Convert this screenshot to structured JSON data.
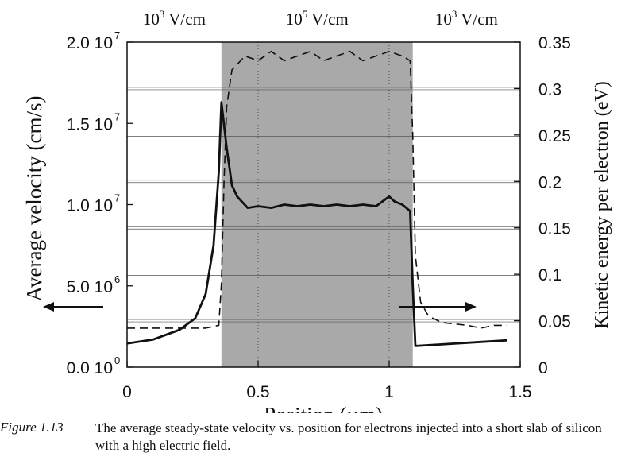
{
  "chart_data": {
    "type": "line",
    "xlabel": "Position (µm)",
    "ylabel_left": "Average velocity (cm/s)",
    "ylabel_right": "Kinetic energy per electron (eV)",
    "xlim": [
      0,
      1.5
    ],
    "ylim_left": [
      0,
      20000000
    ],
    "ylim_right": [
      0,
      0.35
    ],
    "x_ticks": [
      0,
      0.5,
      1,
      1.5
    ],
    "x_tick_labels": [
      "0",
      "0.5",
      "1",
      "1.5"
    ],
    "y_left_ticks": [
      0,
      5000000,
      10000000,
      15000000,
      20000000
    ],
    "y_left_tick_labels": [
      {
        "mant": "0.0 10",
        "exp": "0"
      },
      {
        "mant": "5.0 10",
        "exp": "6"
      },
      {
        "mant": "1.0 10",
        "exp": "7"
      },
      {
        "mant": "1.5 10",
        "exp": "7"
      },
      {
        "mant": "2.0 10",
        "exp": "7"
      }
    ],
    "y_right_ticks": [
      0,
      0.05,
      0.1,
      0.15,
      0.2,
      0.25,
      0.3,
      0.35
    ],
    "y_right_tick_labels": [
      "0",
      "0.05",
      "0.1",
      "0.15",
      "0.2",
      "0.25",
      "0.3",
      "0.35"
    ],
    "grid": "horizontal",
    "shaded_region": {
      "x_start": 0.36,
      "x_end": 1.09
    },
    "region_labels": [
      {
        "base": "10",
        "exp": "3",
        "unit": " V/cm"
      },
      {
        "base": "10",
        "exp": "5",
        "unit": " V/cm"
      },
      {
        "base": "10",
        "exp": "3",
        "unit": " V/cm"
      }
    ],
    "series": [
      {
        "style": "solid",
        "axis": "left",
        "x": [
          0,
          0.1,
          0.2,
          0.26,
          0.3,
          0.33,
          0.35,
          0.36,
          0.38,
          0.4,
          0.42,
          0.46,
          0.5,
          0.55,
          0.6,
          0.65,
          0.7,
          0.75,
          0.8,
          0.85,
          0.9,
          0.95,
          1.0,
          1.02,
          1.05,
          1.08,
          1.09,
          1.1,
          1.2,
          1.3,
          1.45
        ],
        "y": [
          1450000,
          1700000,
          2300000,
          3000000,
          4500000,
          7500000,
          12000000,
          16300000,
          13500000,
          11200000,
          10500000,
          9800000,
          9900000,
          9800000,
          10000000,
          9900000,
          10000000,
          9900000,
          10000000,
          9900000,
          10000000,
          9900000,
          10500000,
          10200000,
          10000000,
          9600000,
          5000000,
          1300000,
          1400000,
          1500000,
          1650000
        ]
      },
      {
        "style": "dashed",
        "axis": "right",
        "x": [
          0,
          0.3,
          0.35,
          0.36,
          0.37,
          0.38,
          0.4,
          0.45,
          0.5,
          0.55,
          0.6,
          0.65,
          0.7,
          0.75,
          0.8,
          0.85,
          0.9,
          0.95,
          1.0,
          1.05,
          1.08,
          1.09,
          1.1,
          1.12,
          1.15,
          1.2,
          1.3,
          1.35,
          1.4,
          1.45
        ],
        "y": [
          0.042,
          0.042,
          0.045,
          0.09,
          0.2,
          0.28,
          0.32,
          0.335,
          0.33,
          0.34,
          0.33,
          0.335,
          0.34,
          0.33,
          0.335,
          0.34,
          0.33,
          0.335,
          0.34,
          0.335,
          0.33,
          0.25,
          0.12,
          0.07,
          0.055,
          0.048,
          0.045,
          0.042,
          0.045,
          0.045
        ]
      }
    ],
    "annotations": [
      {
        "type": "arrow",
        "direction": "left",
        "refers_to": "left-axis"
      },
      {
        "type": "arrow",
        "direction": "right",
        "refers_to": "right-axis"
      }
    ]
  },
  "caption": {
    "label": "Figure 1.13",
    "text": "The average steady-state velocity vs. position for electrons injected into a short slab of silicon with a high electric field."
  }
}
